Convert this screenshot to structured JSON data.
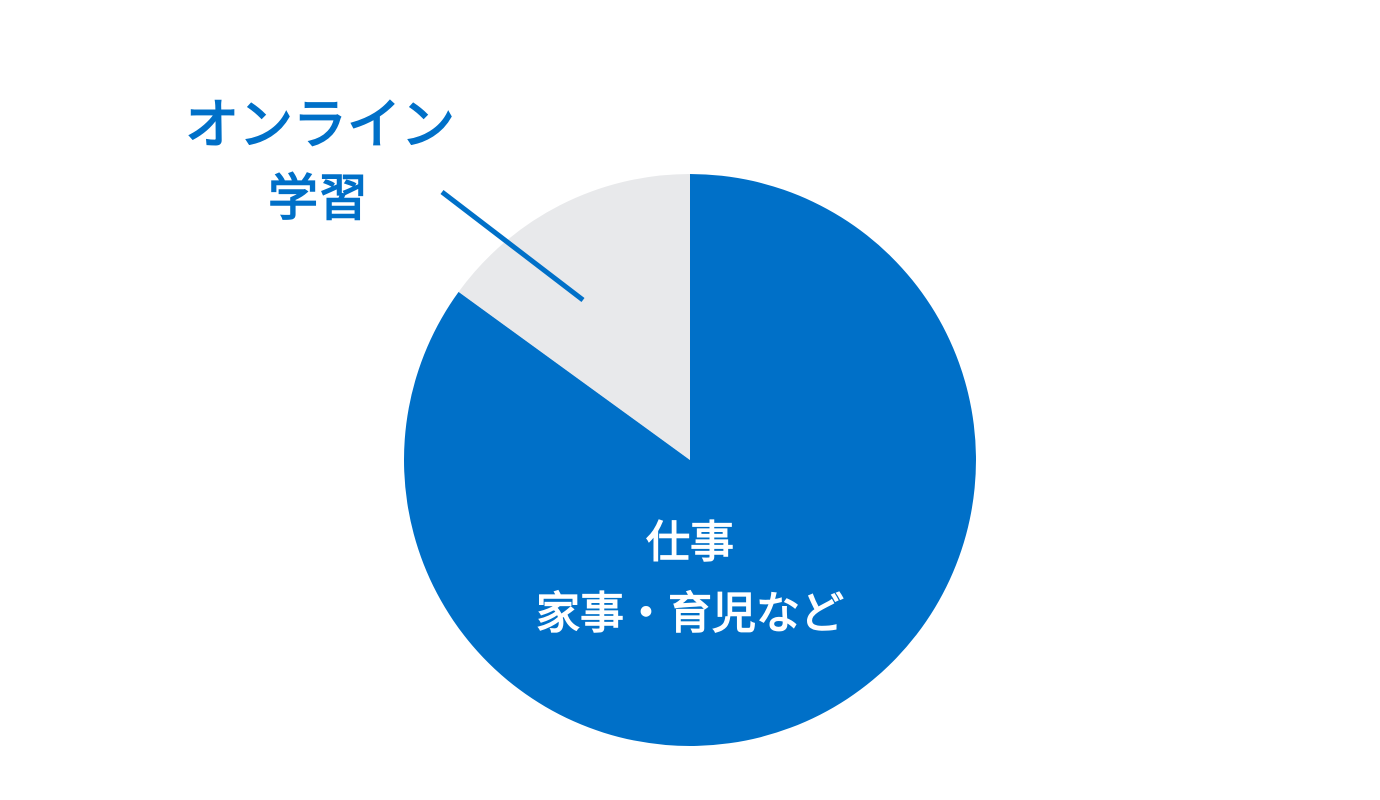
{
  "chart_data": {
    "type": "pie",
    "title": "",
    "start": "top",
    "slices": [
      {
        "label_lines": [
          "仕事",
          "家事・育児など"
        ],
        "value": 85,
        "color": "#0070C8",
        "label_color": "#FFFFFF"
      },
      {
        "label_lines": [
          "オンライン",
          "学習"
        ],
        "value": 15,
        "color": "#E8E9EB",
        "label_color": "#0070C8"
      }
    ],
    "legend": "none"
  }
}
